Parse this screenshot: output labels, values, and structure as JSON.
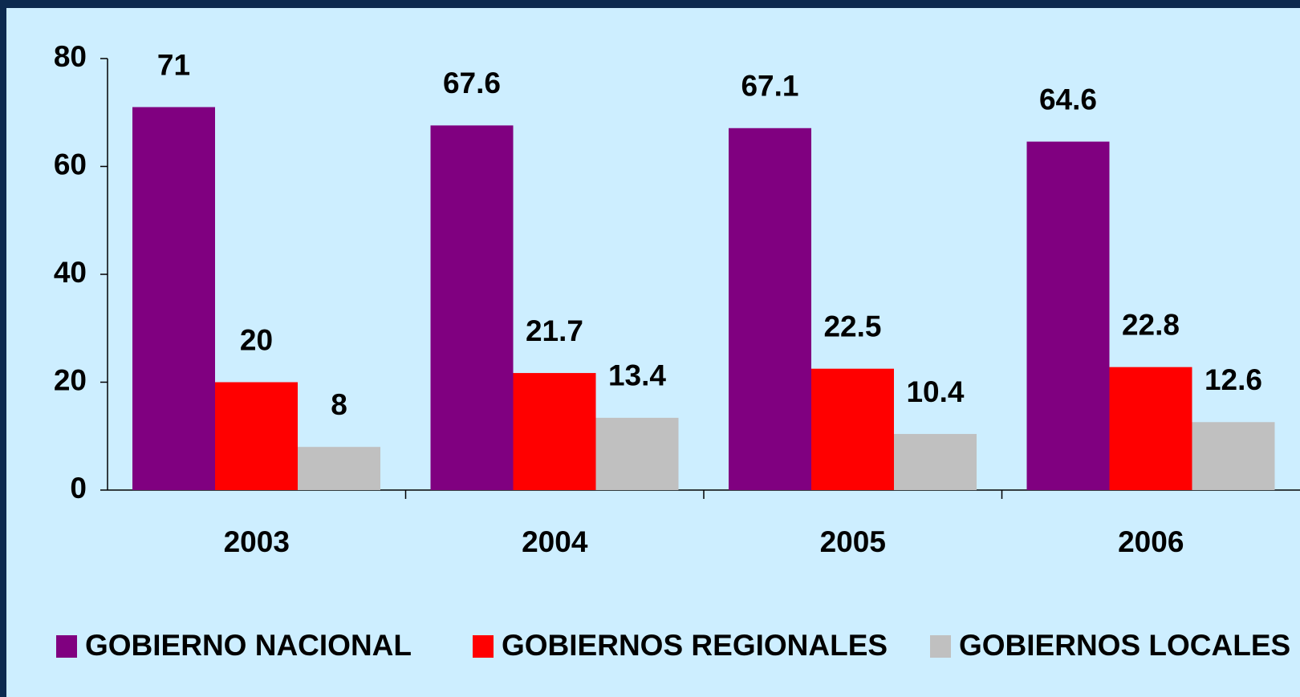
{
  "chart_data": {
    "type": "bar",
    "categories": [
      "2003",
      "2004",
      "2005",
      "2006"
    ],
    "series": [
      {
        "name": "GOBIERNO NACIONAL",
        "color": "#800080",
        "values": [
          71,
          67.6,
          67.1,
          64.6
        ]
      },
      {
        "name": "GOBIERNOS REGIONALES",
        "color": "#ff0000",
        "values": [
          20,
          21.7,
          22.5,
          22.8
        ]
      },
      {
        "name": "GOBIERNOS LOCALES",
        "color": "#c0c0c0",
        "values": [
          8,
          13.4,
          10.4,
          12.6
        ]
      }
    ],
    "ylim": [
      0,
      80
    ],
    "yticks": [
      0,
      20,
      40,
      60,
      80
    ],
    "grid": false,
    "legend": "bottom"
  }
}
